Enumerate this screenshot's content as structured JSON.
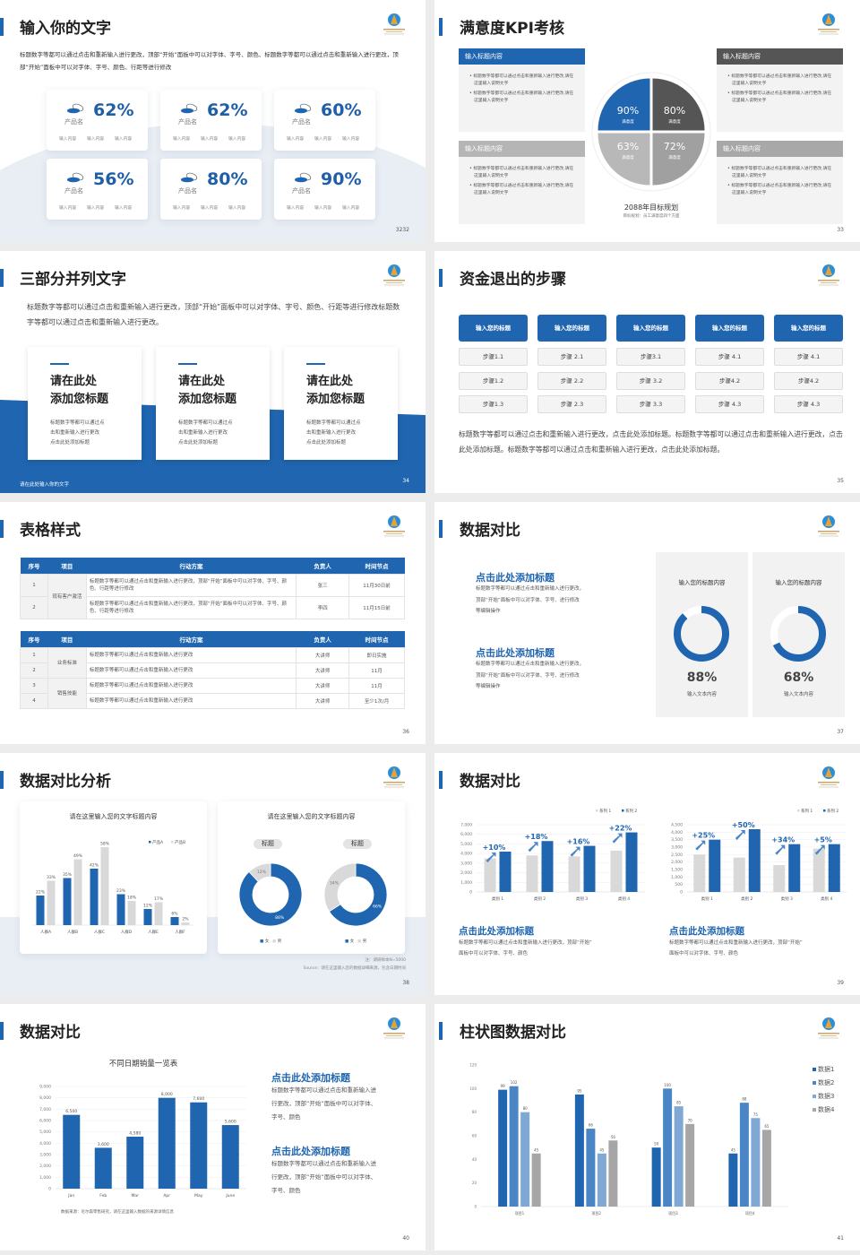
{
  "colors": {
    "accent": "#1f65b0",
    "dark_gray": "#555555",
    "gray": "#a8a8a8",
    "light_gray": "#d9d9d9"
  },
  "s32": {
    "title": "输入你的文字",
    "page": "3232",
    "intro": "标题数字等都可以通过点击和重新输入进行更改，顶部“开始”面板中可以对字体、字号、颜色、标题数字等都可以通过点击和重新输入进行更改，顶部“开始”面板中可以对字体、字号、颜色、行距等进行修改",
    "cards": [
      {
        "value": "62%",
        "name": "产品名",
        "items": [
          "输入内容",
          "输入内容",
          "输入内容"
        ]
      },
      {
        "value": "62%",
        "name": "产品名",
        "items": [
          "输入内容",
          "输入内容",
          "输入内容"
        ]
      },
      {
        "value": "60%",
        "name": "产品名",
        "items": [
          "输入内容",
          "输入内容",
          "输入内容"
        ]
      },
      {
        "value": "56%",
        "name": "产品名",
        "items": [
          "输入内容",
          "输入内容",
          "输入内容"
        ]
      },
      {
        "value": "80%",
        "name": "产品名",
        "items": [
          "输入内容",
          "输入内容",
          "输入内容"
        ]
      },
      {
        "value": "90%",
        "name": "产品名",
        "items": [
          "输入内容",
          "输入内容",
          "输入内容"
        ]
      }
    ]
  },
  "s33": {
    "title": "满意度KPI考核",
    "page": "33",
    "boxes": [
      {
        "header": "输入标题内容",
        "bullets": [
          "标题数字等都可以通过点击和重新输入进行更改,请在这里输入说明文字",
          "标题数字等都可以通过点击和重新输入进行更改,请在这里输入说明文字"
        ]
      },
      {
        "header": "输入标题内容",
        "bullets": [
          "标题数字等都可以通过点击和重新输入进行更改,请在这里输入说明文字",
          "标题数字等都可以通过点击和重新输入进行更改,请在这里输入说明文字"
        ]
      },
      {
        "header": "输入标题内容",
        "bullets": [
          "标题数字等都可以通过点击和重新输入进行更改,请在这里输入说明文字",
          "标题数字等都可以通过点击和重新输入进行更改,请在这里输入说明文字"
        ]
      },
      {
        "header": "输入标题内容",
        "bullets": [
          "标题数字等都可以通过点击和重新输入进行更改,请在这里输入说明文字",
          "标题数字等都可以通过点击和重新输入进行更改,请在这里输入说明文字"
        ]
      }
    ],
    "quadrants": [
      {
        "value": "90%",
        "label": "满意度",
        "color": "#1f65b0"
      },
      {
        "value": "80%",
        "label": "满意度",
        "color": "#555555"
      },
      {
        "value": "63%",
        "label": "满意度",
        "color": "#b8b8b8"
      },
      {
        "value": "72%",
        "label": "满意度",
        "color": "#a0a0a0"
      }
    ],
    "center_title": "2088年目标规划",
    "center_sub": "目标规划：员工满意度四个方面"
  },
  "s34": {
    "title": "三部分并列文字",
    "page": "34",
    "intro": "标题数字等都可以通过点击和重新输入进行更改，顶部“开始”面板中可以对字体、字号、颜色、行距等进行修改标题数字等都可以通过点击和重新输入进行更改。",
    "footer": "请在此处输入你的文字",
    "cards": [
      {
        "title1": "请在此处",
        "title2": "添加您标题",
        "lines": [
          "标题数字等都可以通过点",
          "击和重新输入进行更改",
          "点击此处添加标题"
        ]
      },
      {
        "title1": "请在此处",
        "title2": "添加您标题",
        "lines": [
          "标题数字等都可以通过点",
          "击和重新输入进行更改",
          "点击此处添加标题"
        ]
      },
      {
        "title1": "请在此处",
        "title2": "添加您标题",
        "lines": [
          "标题数字等都可以通过点",
          "击和重新输入进行更改",
          "点击此处添加标题"
        ]
      }
    ]
  },
  "s35": {
    "title": "资金退出的步骤",
    "page": "35",
    "columns": [
      {
        "header": "输入您的标题",
        "steps": [
          "步骤1.1",
          "步骤1.2",
          "步骤1.3"
        ]
      },
      {
        "header": "输入您的标题",
        "steps": [
          "步骤 2.1",
          "步骤 2.2",
          "步骤 2.3"
        ]
      },
      {
        "header": "输入您的标题",
        "steps": [
          "步骤3.1",
          "步骤 3.2",
          "步骤 3.3"
        ]
      },
      {
        "header": "输入您的标题",
        "steps": [
          "步骤 4.1",
          "步骤4.2",
          "步骤 4.3"
        ]
      },
      {
        "header": "输入您的标题",
        "steps": [
          "步骤 4.1",
          "步骤4.2",
          "步骤 4.3"
        ]
      }
    ],
    "paragraph": "标题数字等都可以通过点击和重新输入进行更改，点击此处添加标题。标题数字等都可以通过点击和重新输入进行更改，点击此处添加标题。标题数字等都可以通过点击和重新输入进行更改，点击此处添加标题。"
  },
  "s36": {
    "title": "表格样式",
    "page": "36",
    "headers": [
      "序号",
      "项目",
      "行动方案",
      "负责人",
      "时间节点"
    ],
    "table1": [
      {
        "no": "1",
        "project": "现有客户激活",
        "span": 2,
        "plan": "标题数字等都可以通过点击和重新输入进行更改，顶部“开始”面板中可以对字体、字号、颜色、行距等进行修改",
        "owner": "张三",
        "time": "11月30日前"
      },
      {
        "no": "2",
        "plan": "标题数字等都可以通过点击和重新输入进行更改，顶部“开始”面板中可以对字体、字号、颜色、行距等进行修改",
        "owner": "李四",
        "time": "11月15日前"
      }
    ],
    "table2": [
      {
        "no": "1",
        "project": "业务标准",
        "span": 2,
        "plan": "标题数字等都可以通过点击和重新输入进行更改",
        "owner": "大讲师",
        "time": "即日实施"
      },
      {
        "no": "2",
        "plan": "标题数字等都可以通过点击和重新输入进行更改",
        "owner": "大讲师",
        "time": "11月"
      },
      {
        "no": "3",
        "project": "销售技能",
        "span": 2,
        "plan": "标题数字等都可以通过点击和重新输入进行更改",
        "owner": "大讲师",
        "time": "11月"
      },
      {
        "no": "4",
        "plan": "标题数字等都可以通过点击和重新输入进行更改",
        "owner": "大讲师",
        "time": "至少1次/月"
      }
    ]
  },
  "s37": {
    "title": "数据对比",
    "page": "37",
    "blocks": [
      {
        "heading": "点击此处添加标题",
        "lines": [
          "标题数字等都可以通过点击和重新输入进行更改，",
          "顶部“开始”面板中可以对字体、字号、进行修改",
          "等编辑操作"
        ]
      },
      {
        "heading": "点击此处添加标题",
        "lines": [
          "标题数字等都可以通过点击和重新输入进行更改，",
          "顶部“开始”面板中可以对字体、字号、进行修改",
          "等编辑操作"
        ]
      }
    ],
    "rings": [
      {
        "title": "输入您的标题内容",
        "percent": 88,
        "value": "88%",
        "label": "输入文本内容"
      },
      {
        "title": "输入您的标题内容",
        "percent": 68,
        "value": "68%",
        "label": "输入文本内容"
      }
    ]
  },
  "s38": {
    "title": "数据对比分析",
    "page": "38",
    "left_title": "请在这里输入您的文字标题内容",
    "right_title": "请在这里输入您的文字标题内容",
    "pill1": "标题",
    "pill2": "标题",
    "note": "注：调研样本N=5000",
    "source": "Source：请在这里输入您的数据详细来源，包含日期时间"
  },
  "s39": {
    "title": "数据对比",
    "page": "39",
    "blocks": [
      {
        "heading": "点击此处添加标题",
        "lines": [
          "标题数字等都可以通过点击和重新输入进行更改，顶部“开始”",
          "面板中可以对字体、字号、颜色"
        ]
      },
      {
        "heading": "点击此处添加标题",
        "lines": [
          "标题数字等都可以通过点击和重新输入进行更改，顶部“开始”",
          "面板中可以对字体、字号、颜色"
        ]
      }
    ]
  },
  "s40": {
    "title": "数据对比",
    "page": "40",
    "chart_title": "不同日期销量一览表",
    "source": "数据来源：尼尔森零售研究，请在这里输入数据的来源详情信息",
    "blocks": [
      {
        "heading": "点击此处添加标题",
        "lines": [
          "标题数字等都可以通过点击和重新输入进",
          "行更改，顶部“开始”面板中可以对字体、",
          "字号、颜色"
        ]
      },
      {
        "heading": "点击此处添加标题",
        "lines": [
          "标题数字等都可以通过点击和重新输入进",
          "行更改，顶部“开始”面板中可以对字体、",
          "字号、颜色"
        ]
      }
    ]
  },
  "s41": {
    "title": "柱状图数据对比",
    "page": "41"
  },
  "chart_data": [
    {
      "type": "bar",
      "categories": [
        "人群A",
        "人群B",
        "人群C",
        "人群D",
        "人群E",
        "人群F"
      ],
      "series": [
        {
          "name": "产品A",
          "values": [
            22,
            35,
            42,
            23,
            12,
            6
          ],
          "color": "#1f65b0"
        },
        {
          "name": "产品B",
          "values": [
            33,
            49,
            58,
            18,
            17,
            2
          ],
          "color": "#d9d9d9"
        }
      ],
      "ylim": [
        0,
        60
      ],
      "value_suffix": "%",
      "data_labels": true,
      "grid": false,
      "legend": "top-right"
    },
    {
      "type": "pie",
      "donut": true,
      "categories": [
        "女",
        "男"
      ],
      "values": [
        88,
        12
      ],
      "labels": [
        "88%",
        "12%"
      ],
      "colors": [
        "#1f65b0",
        "#d9d9d9"
      ],
      "legend": "bottom"
    },
    {
      "type": "pie",
      "donut": true,
      "categories": [
        "女",
        "男"
      ],
      "values": [
        66,
        34
      ],
      "labels": [
        "66%",
        "34%"
      ],
      "colors": [
        "#1f65b0",
        "#d9d9d9"
      ],
      "legend": "bottom"
    },
    {
      "type": "bar",
      "categories": [
        "类别 1",
        "类别 2",
        "类别 3",
        "类别 4"
      ],
      "series": [
        {
          "name": "系列 1",
          "values": [
            3500,
            3800,
            3700,
            4300
          ],
          "color": "#d9d9d9"
        },
        {
          "name": "系列 2",
          "values": [
            4200,
            5300,
            4800,
            6200
          ],
          "color": "#1f65b0"
        }
      ],
      "ylim": [
        0,
        7000
      ],
      "yticks": [
        0,
        1000,
        2000,
        3000,
        4000,
        5000,
        6000,
        7000
      ],
      "annotations": [
        "+10%",
        "+18%",
        "+16%",
        "+22%"
      ],
      "grid": true,
      "legend": "top-right"
    },
    {
      "type": "bar",
      "categories": [
        "类别 1",
        "类别 2",
        "类别 3",
        "类别 4"
      ],
      "series": [
        {
          "name": "系列 1",
          "values": [
            2500,
            2300,
            1800,
            2900
          ],
          "color": "#d9d9d9"
        },
        {
          "name": "系列 2",
          "values": [
            3500,
            4200,
            3200,
            3200
          ],
          "color": "#1f65b0"
        }
      ],
      "ylim": [
        0,
        4500
      ],
      "yticks": [
        0,
        500,
        1000,
        1500,
        2000,
        2500,
        3000,
        3500,
        4000,
        4500
      ],
      "annotations": [
        "+25%",
        "+50%",
        "+34%",
        "+5%"
      ],
      "grid": true,
      "legend": "top-right"
    },
    {
      "type": "bar",
      "title": "不同日期销量一览表",
      "categories": [
        "Jan",
        "Feb",
        "Mar",
        "Apr",
        "May",
        "June"
      ],
      "series": [
        {
          "values": [
            6500,
            3600,
            4580,
            8000,
            7600,
            5600
          ],
          "color": "#1f65b0"
        }
      ],
      "ylim": [
        0,
        9000
      ],
      "yticks": [
        0,
        1000,
        2000,
        3000,
        4000,
        5000,
        6000,
        7000,
        8000,
        9000
      ],
      "data_labels": true,
      "grid": true
    },
    {
      "type": "bar",
      "categories": [
        "项目1",
        "项目2",
        "项目3",
        "项目4"
      ],
      "series": [
        {
          "name": "数据1",
          "values": [
            99,
            95,
            50,
            45
          ],
          "color": "#1f65b0"
        },
        {
          "name": "数据2",
          "values": [
            102,
            66,
            100,
            88
          ],
          "color": "#4a86c5"
        },
        {
          "name": "数据3",
          "values": [
            80,
            45,
            85,
            75
          ],
          "color": "#80a8d4"
        },
        {
          "name": "数据4",
          "values": [
            45,
            56,
            70,
            65
          ],
          "color": "#a6a6a6"
        }
      ],
      "ylim": [
        0,
        120
      ],
      "yticks": [
        0,
        20,
        40,
        60,
        80,
        100,
        120
      ],
      "data_labels": true,
      "grid": false,
      "legend": "right"
    }
  ]
}
